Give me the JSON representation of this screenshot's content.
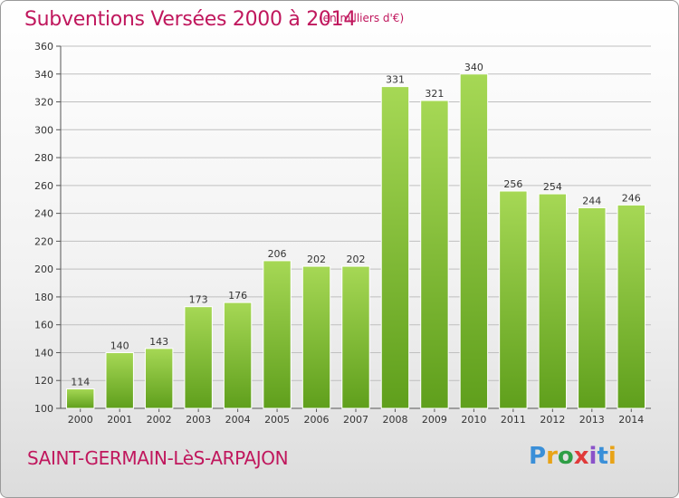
{
  "title": "Subventions Versées 2000 à 2014",
  "unit_note": "(en milliers d'€)",
  "commune": "SAINT-GERMAIN-LèS-ARPAJON",
  "logo": {
    "text": "Proxiti",
    "colors": [
      "#3a8fd8",
      "#e8a317",
      "#2e9e45",
      "#e03a3a",
      "#8a52c9",
      "#3a8fd8",
      "#e8a317"
    ]
  },
  "colors": {
    "title": "#c0175d",
    "bar_top": "#a6d855",
    "bar_bottom": "#5f9f1c",
    "grid": "#bfbfbf"
  },
  "chart_data": {
    "type": "bar",
    "categories": [
      "2000",
      "2001",
      "2002",
      "2003",
      "2004",
      "2005",
      "2006",
      "2007",
      "2008",
      "2009",
      "2010",
      "2011",
      "2012",
      "2013",
      "2014"
    ],
    "values": [
      114,
      140,
      143,
      173,
      176,
      206,
      202,
      202,
      331,
      321,
      340,
      256,
      254,
      244,
      246
    ],
    "title": "Subventions Versées 2000 à 2014",
    "xlabel": "",
    "ylabel": "",
    "ylim": [
      100,
      360
    ],
    "yticks": [
      100,
      120,
      140,
      160,
      180,
      200,
      220,
      240,
      260,
      280,
      300,
      320,
      340,
      360
    ],
    "grid": true,
    "data_labels": true
  }
}
